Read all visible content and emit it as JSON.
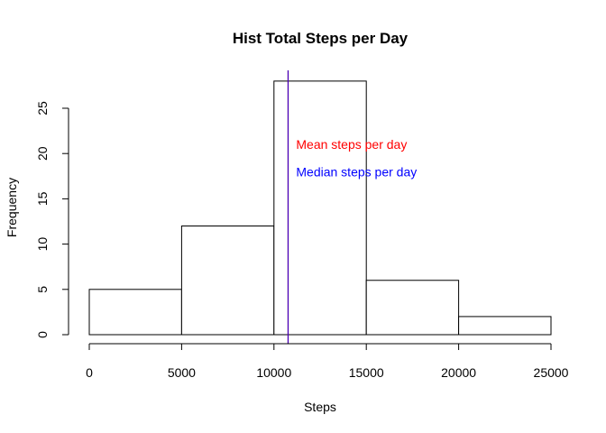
{
  "chart_data": {
    "type": "bar",
    "title": "Hist Total Steps per Day",
    "xlabel": "Steps",
    "ylabel": "Frequency",
    "bins": [
      {
        "start": 0,
        "end": 5000,
        "count": 5
      },
      {
        "start": 5000,
        "end": 10000,
        "count": 12
      },
      {
        "start": 10000,
        "end": 15000,
        "count": 28
      },
      {
        "start": 15000,
        "end": 20000,
        "count": 6
      },
      {
        "start": 20000,
        "end": 25000,
        "count": 2
      }
    ],
    "xlim": [
      0,
      25000
    ],
    "ylim": [
      0,
      28
    ],
    "x_ticks": [
      0,
      5000,
      10000,
      15000,
      20000,
      25000
    ],
    "y_ticks": [
      0,
      5,
      10,
      15,
      20,
      25
    ],
    "grid": false,
    "legend": "none",
    "bar_fill": "#ffffff",
    "bar_stroke": "#000000",
    "vlines": [
      {
        "x": 10766,
        "color": "#ff0000"
      },
      {
        "x": 10765,
        "color": "#0000ff"
      }
    ],
    "annotations": [
      {
        "text": "Mean steps per day",
        "x": 11200,
        "y": 21,
        "color": "#ff0000"
      },
      {
        "text": "Median steps per day",
        "x": 11200,
        "y": 18,
        "color": "#0000ff"
      }
    ]
  }
}
